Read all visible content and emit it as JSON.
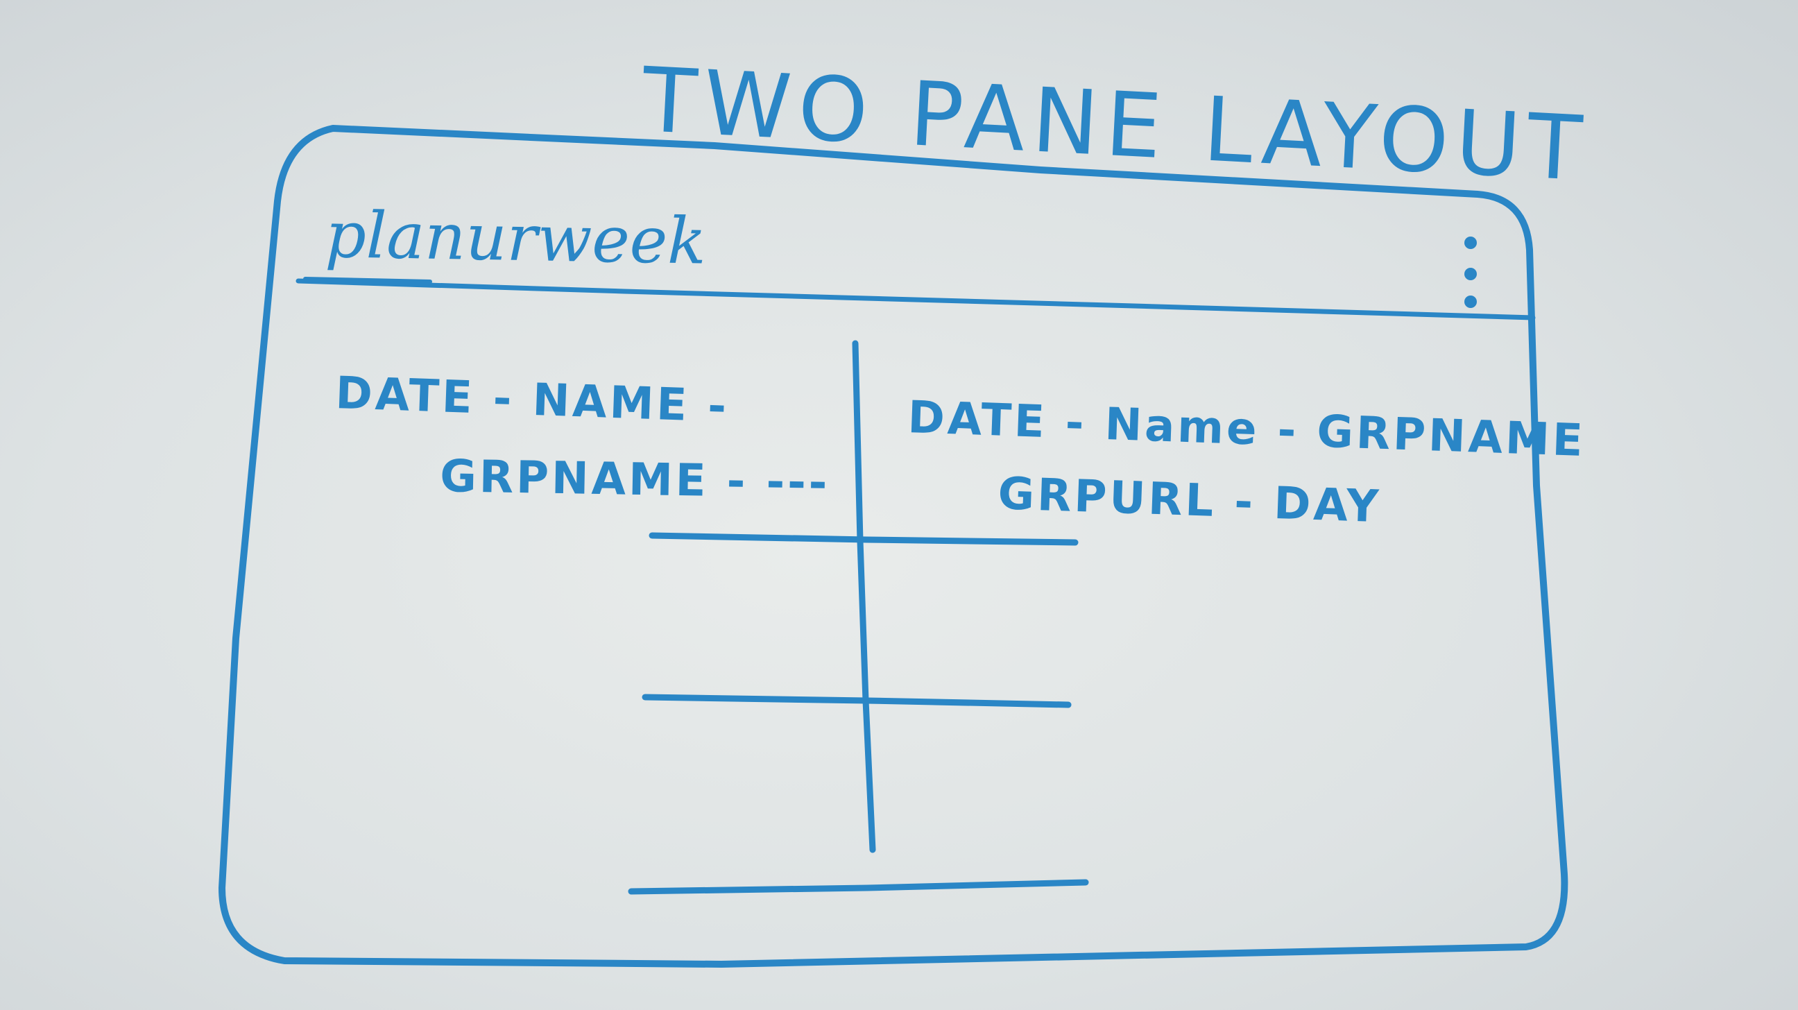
{
  "sketch": {
    "title": "TWO PANE LAYOUT",
    "app_bar": {
      "app_name": "planurweek",
      "menu_icon": "vertical-dots-icon"
    },
    "left_pane": {
      "line1": "DATE - NAME -",
      "line2": "GRPNAME - ---"
    },
    "right_pane": {
      "line1": "DATE - Name - GRPNAME",
      "line2": "GRPURL - DAY"
    }
  },
  "colors": {
    "ink": "#2a86c6",
    "paper": "#e3e7e8"
  }
}
